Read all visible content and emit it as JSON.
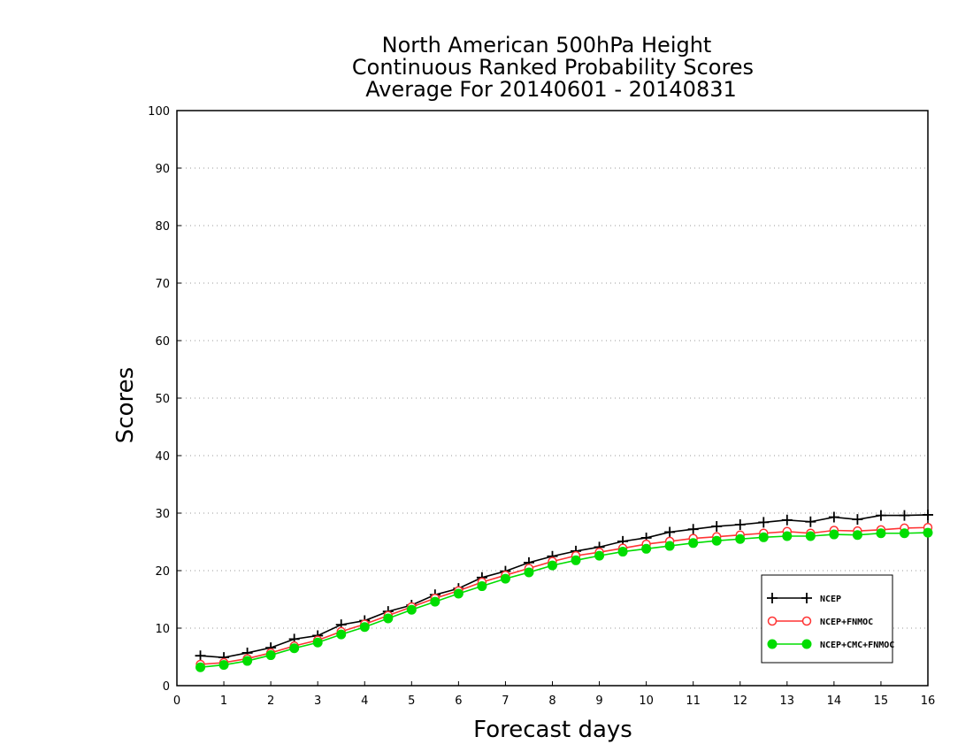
{
  "chart_data": {
    "type": "line",
    "title_lines": [
      "North American 500hPa Height",
      "Continuous Ranked Probability Scores",
      "Average For 20140601 - 20140831"
    ],
    "xlabel": "Forecast days",
    "ylabel": "Scores",
    "xlim": [
      0,
      16
    ],
    "ylim": [
      0,
      100
    ],
    "x_ticks": [
      0,
      1,
      2,
      3,
      4,
      5,
      6,
      7,
      8,
      9,
      10,
      11,
      12,
      13,
      14,
      15,
      16
    ],
    "y_ticks": [
      0,
      10,
      20,
      30,
      40,
      50,
      60,
      70,
      80,
      90,
      100
    ],
    "grid": "horizontal dotted",
    "legend_position": "bottom-right",
    "x": [
      0.5,
      1,
      1.5,
      2,
      2.5,
      3,
      3.5,
      4,
      4.5,
      5,
      5.5,
      6,
      6.5,
      7,
      7.5,
      8,
      8.5,
      9,
      9.5,
      10,
      10.5,
      11,
      11.5,
      12,
      12.5,
      13,
      13.5,
      14,
      14.5,
      15,
      15.5,
      16
    ],
    "series": [
      {
        "name": "NCEP",
        "color": "#000000",
        "marker": "plus",
        "values": [
          5.2,
          4.9,
          5.7,
          6.6,
          8.1,
          8.7,
          10.6,
          11.3,
          12.9,
          14.0,
          15.8,
          16.9,
          18.8,
          19.9,
          21.4,
          22.5,
          23.4,
          24.1,
          25.1,
          25.7,
          26.7,
          27.2,
          27.7,
          28.0,
          28.4,
          28.8,
          28.5,
          29.3,
          28.9,
          29.6,
          29.6,
          29.7
        ]
      },
      {
        "name": "NCEP+FNMOC",
        "color": "#ff3333",
        "marker": "open-circle",
        "values": [
          3.7,
          4.0,
          4.7,
          5.7,
          6.9,
          7.9,
          9.4,
          10.7,
          12.2,
          13.7,
          15.2,
          16.5,
          18.0,
          19.2,
          20.4,
          21.6,
          22.6,
          23.2,
          23.9,
          24.6,
          25.1,
          25.6,
          25.9,
          26.2,
          26.5,
          26.8,
          26.5,
          27.0,
          26.9,
          27.1,
          27.4,
          27.5
        ]
      },
      {
        "name": "NCEP+CMC+FNMOC",
        "color": "#00dd00",
        "marker": "filled-circle",
        "values": [
          3.2,
          3.6,
          4.3,
          5.3,
          6.5,
          7.5,
          8.9,
          10.2,
          11.7,
          13.2,
          14.6,
          16.0,
          17.3,
          18.6,
          19.7,
          20.9,
          21.8,
          22.6,
          23.3,
          23.8,
          24.3,
          24.8,
          25.2,
          25.5,
          25.8,
          26.0,
          26.0,
          26.3,
          26.2,
          26.5,
          26.5,
          26.6
        ]
      }
    ]
  }
}
